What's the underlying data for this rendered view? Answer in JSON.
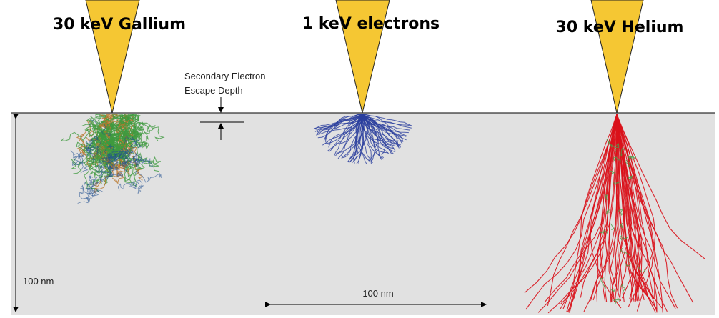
{
  "beams": [
    {
      "label": "30 keV Gallium"
    },
    {
      "label": "1 keV electrons"
    },
    {
      "label": "30 keV Helium"
    }
  ],
  "escape_depth": {
    "lines": [
      "Secondary Electron",
      "Escape Depth"
    ]
  },
  "scale_bars": {
    "vertical": "100 nm",
    "horizontal": "100 nm"
  }
}
